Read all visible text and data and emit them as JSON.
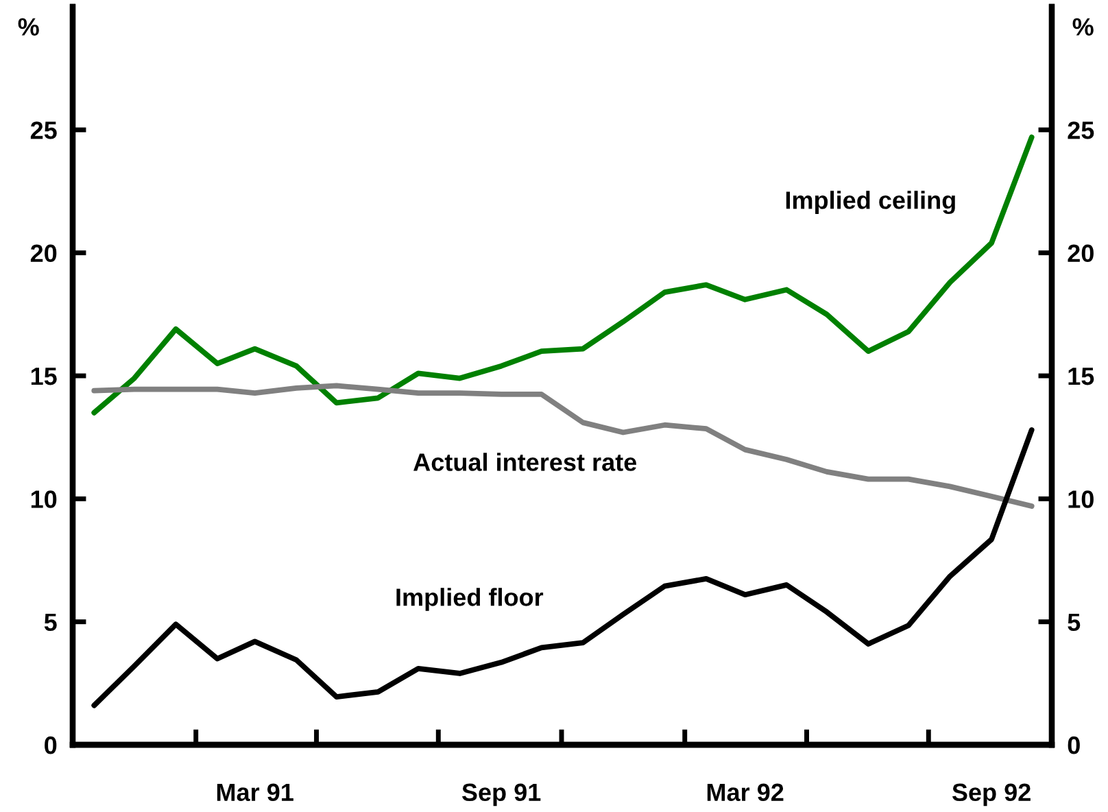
{
  "chart_data": {
    "type": "line",
    "x": [
      "1990-11",
      "1990-12",
      "1991-01",
      "1991-02",
      "1991-03",
      "1991-04",
      "1991-05",
      "1991-06",
      "1991-07",
      "1991-08",
      "1991-09",
      "1991-10",
      "1991-11",
      "1991-12",
      "1992-01",
      "1992-02",
      "1992-03",
      "1992-04",
      "1992-05",
      "1992-06",
      "1992-07",
      "1992-08",
      "1992-09",
      "1992-10"
    ],
    "series": [
      {
        "color": "#008000",
        "values": [
          13.5,
          14.9,
          16.9,
          15.5,
          16.1,
          15.4,
          13.9,
          14.1,
          15.1,
          14.9,
          15.4,
          16.0,
          16.1,
          17.2,
          18.4,
          18.7,
          18.1,
          18.5,
          17.5,
          16.0,
          16.8,
          18.8,
          20.4,
          24.7
        ]
      },
      {
        "color": "#808080",
        "values": [
          14.4,
          14.45,
          14.45,
          14.45,
          14.3,
          14.5,
          14.6,
          14.45,
          14.3,
          14.3,
          14.25,
          14.25,
          13.1,
          12.7,
          13.0,
          12.85,
          12.0,
          11.6,
          11.1,
          10.8,
          10.8,
          10.5,
          10.1,
          9.7
        ]
      },
      {
        "color": "#000000",
        "values": [
          1.6,
          3.2,
          4.9,
          3.5,
          4.2,
          3.45,
          1.95,
          2.15,
          3.1,
          2.9,
          3.35,
          3.95,
          4.15,
          5.3,
          6.45,
          6.75,
          6.1,
          6.5,
          5.4,
          4.1,
          4.85,
          6.85,
          8.35,
          12.8
        ]
      }
    ],
    "ylabel": "%",
    "y2label": "%",
    "ylim": [
      0,
      30
    ],
    "yticks": [
      0,
      5,
      10,
      15,
      20,
      25
    ],
    "y2lim": [
      0,
      30
    ],
    "y2ticks": [
      0,
      5,
      10,
      15,
      20,
      25
    ],
    "xlim": [
      "1990-10-16",
      "1992-10-16"
    ],
    "xticks": [
      {
        "value": "1991-01-16",
        "label": null
      },
      {
        "value": "1991-04-16",
        "label": null
      },
      {
        "value": "1991-07-16",
        "label": null
      },
      {
        "value": "1991-10-16",
        "label": null
      },
      {
        "value": "1992-01-16",
        "label": null
      },
      {
        "value": "1992-04-16",
        "label": null
      },
      {
        "value": "1992-07-16",
        "label": null
      },
      {
        "value": "1991-03",
        "label": "Mar 91"
      },
      {
        "value": "1991-09",
        "label": "Sep 91"
      },
      {
        "value": "1992-03",
        "label": "Mar 92"
      },
      {
        "value": "1992-09",
        "label": "Sep 92"
      }
    ],
    "annotations": [
      "Implied ceiling",
      "Actual interest rate",
      "Implied floor"
    ],
    "marker": "none",
    "line_style": "solid"
  }
}
